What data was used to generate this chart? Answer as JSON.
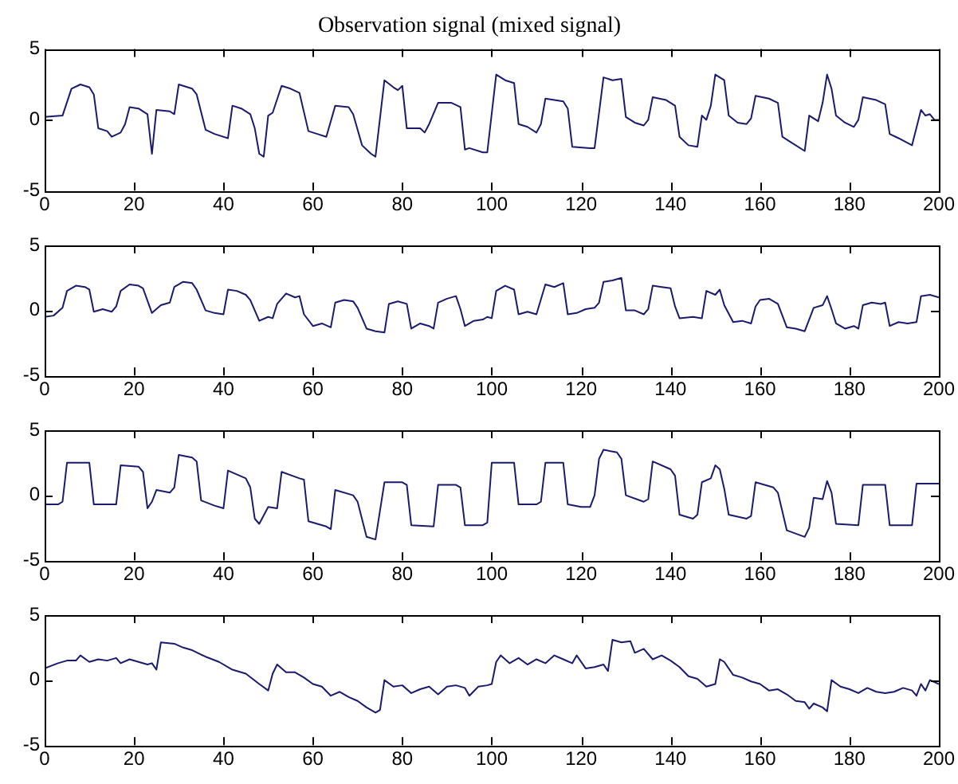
{
  "chart_data": [
    {
      "type": "line",
      "title": "Observation signal (mixed signal)",
      "color": "#1a1a6e",
      "xlim": [
        0,
        200
      ],
      "ylim": [
        -5,
        5
      ],
      "xticks": [
        0,
        20,
        40,
        60,
        80,
        100,
        120,
        140,
        160,
        180,
        200
      ],
      "yticks": [
        -5,
        0,
        5
      ],
      "grid": false,
      "x": [
        0,
        4,
        6,
        8,
        10,
        11,
        12,
        14,
        15,
        17,
        18,
        19,
        21,
        23,
        24,
        25,
        28,
        29,
        30,
        33,
        34,
        36,
        38,
        41,
        42,
        44,
        46,
        47,
        48,
        49,
        50,
        51,
        53,
        55,
        57,
        59,
        61,
        63,
        65,
        68,
        69,
        71,
        73,
        74,
        76,
        78,
        79,
        80,
        81,
        84,
        85,
        86,
        88,
        91,
        93,
        94,
        95,
        98,
        99,
        101,
        103,
        105,
        106,
        108,
        110,
        111,
        112,
        114,
        116,
        117,
        118,
        122,
        123,
        125,
        127,
        129,
        130,
        132,
        134,
        135,
        136,
        139,
        141,
        142,
        144,
        146,
        147,
        148,
        149,
        150,
        152,
        153,
        155,
        157,
        158,
        159,
        162,
        164,
        165,
        167,
        170,
        171,
        173,
        174,
        175,
        176,
        177,
        179,
        181,
        182,
        183,
        186,
        188,
        189,
        191,
        194,
        196,
        197,
        198,
        199,
        200
      ],
      "values": [
        0.2,
        0.3,
        2.2,
        2.5,
        2.3,
        1.8,
        -0.6,
        -0.8,
        -1.2,
        -0.9,
        -0.3,
        0.9,
        0.8,
        0.4,
        -2.4,
        0.7,
        0.6,
        0.4,
        2.5,
        2.2,
        1.8,
        -0.7,
        -1.0,
        -1.3,
        1.0,
        0.8,
        0.4,
        -0.6,
        -2.4,
        -2.6,
        0.3,
        0.5,
        2.4,
        2.2,
        1.9,
        -0.8,
        -1.0,
        -1.2,
        1.0,
        0.9,
        0.4,
        -1.8,
        -2.4,
        -2.6,
        2.8,
        2.3,
        2.1,
        2.4,
        -0.6,
        -0.6,
        -0.9,
        -0.3,
        1.2,
        1.2,
        0.9,
        -2.1,
        -2.0,
        -2.3,
        -2.3,
        3.2,
        2.8,
        2.6,
        -0.3,
        -0.5,
        -0.9,
        -0.3,
        1.5,
        1.4,
        1.3,
        0.8,
        -1.9,
        -2.0,
        -2.0,
        3.0,
        2.8,
        2.9,
        0.2,
        -0.2,
        -0.4,
        0.0,
        1.6,
        1.4,
        1.0,
        -1.2,
        -1.8,
        -1.9,
        0.3,
        0.0,
        1.0,
        3.2,
        2.8,
        0.3,
        -0.2,
        -0.3,
        0.1,
        1.7,
        1.5,
        1.2,
        -1.2,
        -1.6,
        -2.2,
        0.3,
        -0.1,
        1.2,
        3.2,
        2.2,
        0.3,
        -0.2,
        -0.5,
        0.0,
        1.6,
        1.4,
        1.1,
        -1.0,
        -1.3,
        -1.8,
        0.7,
        0.3,
        0.4,
        0.0,
        0.0
      ]
    },
    {
      "type": "line",
      "color": "#1a1a6e",
      "xlim": [
        0,
        200
      ],
      "ylim": [
        -5,
        5
      ],
      "xticks": [
        0,
        20,
        40,
        60,
        80,
        100,
        120,
        140,
        160,
        180,
        200
      ],
      "yticks": [
        -5,
        0,
        5
      ],
      "grid": false,
      "x": [
        0,
        2,
        4,
        5,
        7,
        9,
        10,
        11,
        13,
        15,
        16,
        17,
        19,
        21,
        22,
        24,
        26,
        28,
        29,
        31,
        33,
        34,
        36,
        38,
        40,
        41,
        43,
        45,
        46,
        48,
        50,
        51,
        52,
        54,
        56,
        57,
        58,
        60,
        62,
        64,
        65,
        67,
        69,
        70,
        72,
        74,
        76,
        77,
        79,
        81,
        82,
        84,
        86,
        87,
        88,
        90,
        92,
        93,
        94,
        96,
        98,
        99,
        100,
        101,
        103,
        105,
        106,
        108,
        110,
        112,
        114,
        116,
        117,
        119,
        121,
        123,
        124,
        125,
        127,
        129,
        130,
        132,
        134,
        135,
        136,
        138,
        140,
        141,
        142,
        145,
        147,
        148,
        150,
        151,
        152,
        154,
        156,
        158,
        159,
        160,
        162,
        164,
        166,
        168,
        170,
        172,
        174,
        175,
        176,
        177,
        179,
        181,
        182,
        183,
        185,
        187,
        188,
        189,
        191,
        193,
        195,
        196,
        198,
        200
      ],
      "values": [
        -0.5,
        -0.4,
        0.2,
        1.5,
        1.9,
        1.8,
        1.6,
        -0.1,
        0.1,
        -0.1,
        0.3,
        1.5,
        2.0,
        1.9,
        1.7,
        -0.2,
        0.4,
        0.6,
        1.8,
        2.2,
        2.1,
        1.6,
        0.0,
        -0.2,
        -0.3,
        1.6,
        1.5,
        1.2,
        0.8,
        -0.8,
        -0.5,
        -0.6,
        0.5,
        1.3,
        1.0,
        1.1,
        -0.3,
        -1.2,
        -1.0,
        -1.3,
        0.6,
        0.8,
        0.7,
        0.2,
        -1.4,
        -1.6,
        -1.7,
        0.5,
        0.7,
        0.5,
        -1.4,
        -1.0,
        -1.2,
        -1.4,
        0.6,
        0.9,
        1.1,
        0.1,
        -1.2,
        -0.8,
        -0.7,
        -0.5,
        -0.6,
        1.5,
        1.9,
        1.6,
        -0.3,
        -0.1,
        -0.3,
        2.0,
        1.8,
        2.1,
        -0.3,
        -0.2,
        0.1,
        0.2,
        0.6,
        2.2,
        2.3,
        2.5,
        0.0,
        0.0,
        -0.3,
        0.1,
        1.9,
        1.8,
        1.7,
        0.3,
        -0.6,
        -0.5,
        -0.6,
        1.5,
        1.2,
        1.6,
        0.4,
        -0.9,
        -0.8,
        -1.0,
        0.3,
        0.8,
        0.9,
        0.5,
        -1.3,
        -1.4,
        -1.6,
        0.2,
        0.4,
        1.1,
        0.1,
        -1.0,
        -1.4,
        -1.2,
        -1.4,
        0.4,
        0.6,
        0.5,
        0.6,
        -1.2,
        -0.9,
        -1.0,
        -0.9,
        1.1,
        1.2,
        1.0
      ]
    },
    {
      "type": "line",
      "color": "#1a1a6e",
      "xlim": [
        0,
        200
      ],
      "ylim": [
        -5,
        5
      ],
      "xticks": [
        0,
        20,
        40,
        60,
        80,
        100,
        120,
        140,
        160,
        180,
        200
      ],
      "yticks": [
        -5,
        0,
        5
      ],
      "grid": false,
      "x": [
        0,
        3,
        4,
        5,
        10,
        11,
        16,
        17,
        21,
        22,
        23,
        24,
        25,
        28,
        29,
        30,
        33,
        34,
        35,
        38,
        40,
        41,
        45,
        46,
        47,
        48,
        50,
        52,
        53,
        57,
        58,
        59,
        63,
        64,
        65,
        69,
        70,
        72,
        74,
        76,
        80,
        81,
        82,
        87,
        88,
        92,
        93,
        94,
        98,
        99,
        100,
        105,
        106,
        110,
        111,
        112,
        116,
        117,
        120,
        122,
        123,
        124,
        125,
        128,
        129,
        130,
        134,
        135,
        136,
        140,
        141,
        142,
        145,
        146,
        147,
        149,
        150,
        151,
        152,
        153,
        157,
        158,
        159,
        163,
        164,
        166,
        170,
        171,
        172,
        174,
        175,
        176,
        177,
        182,
        183,
        188,
        189,
        194,
        195,
        200
      ],
      "values": [
        -0.7,
        -0.7,
        -0.5,
        2.5,
        2.5,
        -0.7,
        -0.7,
        2.3,
        2.2,
        1.8,
        -1.0,
        -0.5,
        0.4,
        0.2,
        0.6,
        3.1,
        2.9,
        2.6,
        -0.4,
        -0.8,
        -1.0,
        1.9,
        1.3,
        0.6,
        -1.8,
        -2.2,
        -0.9,
        -1.0,
        1.8,
        1.3,
        1.2,
        -2.0,
        -2.4,
        -2.6,
        0.4,
        0.0,
        -0.5,
        -3.2,
        -3.4,
        1.0,
        1.0,
        0.8,
        -2.3,
        -2.4,
        0.8,
        0.8,
        0.6,
        -2.3,
        -2.3,
        -2.1,
        2.5,
        2.5,
        -0.7,
        -0.7,
        -0.5,
        2.5,
        2.5,
        -0.7,
        -0.9,
        -0.9,
        0.0,
        2.8,
        3.5,
        3.3,
        2.8,
        0.0,
        -0.5,
        -0.3,
        2.6,
        2.0,
        1.5,
        -1.5,
        -1.8,
        -1.5,
        1.0,
        1.3,
        2.3,
        2.0,
        0.5,
        -1.5,
        -1.8,
        -1.6,
        1.0,
        0.6,
        0.2,
        -2.7,
        -3.2,
        -2.5,
        -0.2,
        -0.3,
        1.1,
        0.2,
        -2.2,
        -2.3,
        0.8,
        0.8,
        -2.3,
        -2.3,
        0.9,
        0.9
      ]
    },
    {
      "type": "line",
      "color": "#1a1a6e",
      "xlim": [
        0,
        200
      ],
      "ylim": [
        -5,
        5
      ],
      "xticks": [
        0,
        20,
        40,
        60,
        80,
        100,
        120,
        140,
        160,
        180,
        200
      ],
      "yticks": [
        -5,
        0,
        5
      ],
      "grid": false,
      "x": [
        0,
        3,
        5,
        7,
        8,
        10,
        12,
        14,
        16,
        17,
        19,
        21,
        23,
        24,
        25,
        26,
        29,
        31,
        33,
        36,
        39,
        42,
        45,
        48,
        50,
        51,
        52,
        54,
        56,
        58,
        60,
        62,
        64,
        66,
        68,
        70,
        72,
        74,
        75,
        76,
        78,
        80,
        82,
        84,
        86,
        88,
        90,
        92,
        94,
        95,
        97,
        99,
        100,
        101,
        102,
        104,
        106,
        108,
        110,
        112,
        114,
        116,
        118,
        119,
        121,
        123,
        125,
        126,
        127,
        129,
        131,
        132,
        134,
        136,
        138,
        140,
        142,
        144,
        146,
        148,
        150,
        151,
        152,
        154,
        156,
        158,
        160,
        162,
        164,
        166,
        168,
        170,
        171,
        172,
        174,
        175,
        176,
        178,
        180,
        182,
        184,
        186,
        188,
        190,
        192,
        194,
        195,
        196,
        197,
        198,
        200
      ],
      "values": [
        0.9,
        1.3,
        1.5,
        1.5,
        1.9,
        1.4,
        1.6,
        1.5,
        1.7,
        1.3,
        1.6,
        1.4,
        1.2,
        1.3,
        0.8,
        2.9,
        2.8,
        2.5,
        2.3,
        1.8,
        1.4,
        0.8,
        0.5,
        -0.3,
        -0.8,
        0.5,
        1.2,
        0.6,
        0.6,
        0.2,
        -0.3,
        -0.5,
        -1.2,
        -0.9,
        -1.3,
        -1.6,
        -2.1,
        -2.5,
        -2.3,
        0.0,
        -0.5,
        -0.4,
        -1.0,
        -0.7,
        -0.5,
        -1.1,
        -0.5,
        -0.4,
        -0.6,
        -1.2,
        -0.5,
        -0.4,
        -0.3,
        1.4,
        1.9,
        1.3,
        1.7,
        1.2,
        1.6,
        1.3,
        1.9,
        1.6,
        1.3,
        1.9,
        0.9,
        1.0,
        1.2,
        0.7,
        3.1,
        2.9,
        3.0,
        2.1,
        2.4,
        1.6,
        1.9,
        1.5,
        1.0,
        0.3,
        0.1,
        -0.5,
        -0.3,
        1.6,
        1.4,
        0.4,
        0.2,
        -0.1,
        -0.3,
        -0.8,
        -0.7,
        -1.1,
        -1.6,
        -1.7,
        -2.2,
        -1.8,
        -2.1,
        -2.4,
        0.0,
        -0.5,
        -0.7,
        -1.0,
        -0.6,
        -0.9,
        -1.0,
        -0.9,
        -0.6,
        -0.8,
        -1.2,
        -0.3,
        -0.8,
        0.0,
        -0.3
      ]
    }
  ]
}
